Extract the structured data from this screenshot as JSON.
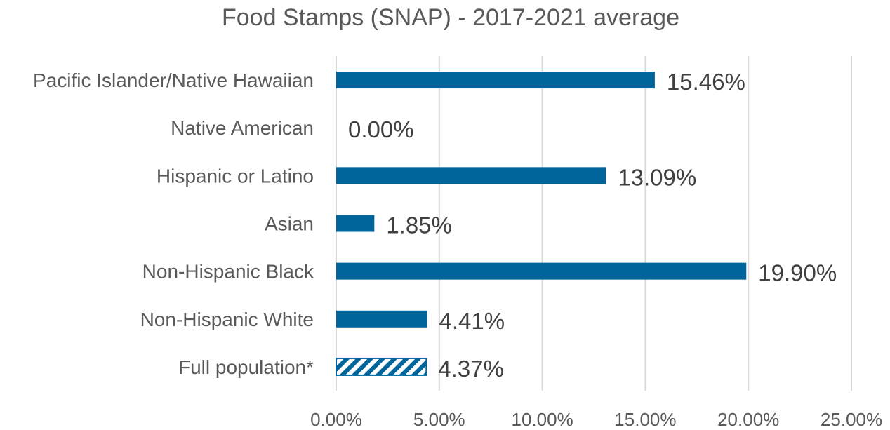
{
  "chart_data": {
    "type": "bar",
    "orientation": "horizontal",
    "title": "Food Stamps (SNAP) - 2017-2021 average",
    "categories": [
      "Pacific Islander/Native Hawaiian",
      "Native American",
      "Hispanic or Latino",
      "Asian",
      "Non-Hispanic Black",
      "Non-Hispanic White",
      "Full population*"
    ],
    "values": [
      15.46,
      0.0,
      13.09,
      1.85,
      19.9,
      4.41,
      4.37
    ],
    "data_labels": [
      "15.46%",
      "0.00%",
      "13.09%",
      "1.85%",
      "19.90%",
      "4.41%",
      "4.37%"
    ],
    "patterned": [
      false,
      false,
      false,
      false,
      false,
      false,
      true
    ],
    "xlim": [
      0,
      25
    ],
    "xticks": [
      0,
      5,
      10,
      15,
      20,
      25
    ],
    "xtick_labels": [
      "0.00%",
      "5.00%",
      "10.00%",
      "15.00%",
      "20.00%",
      "25.00%"
    ],
    "grid": true,
    "legend": "none",
    "bar_color": "#00659a"
  }
}
